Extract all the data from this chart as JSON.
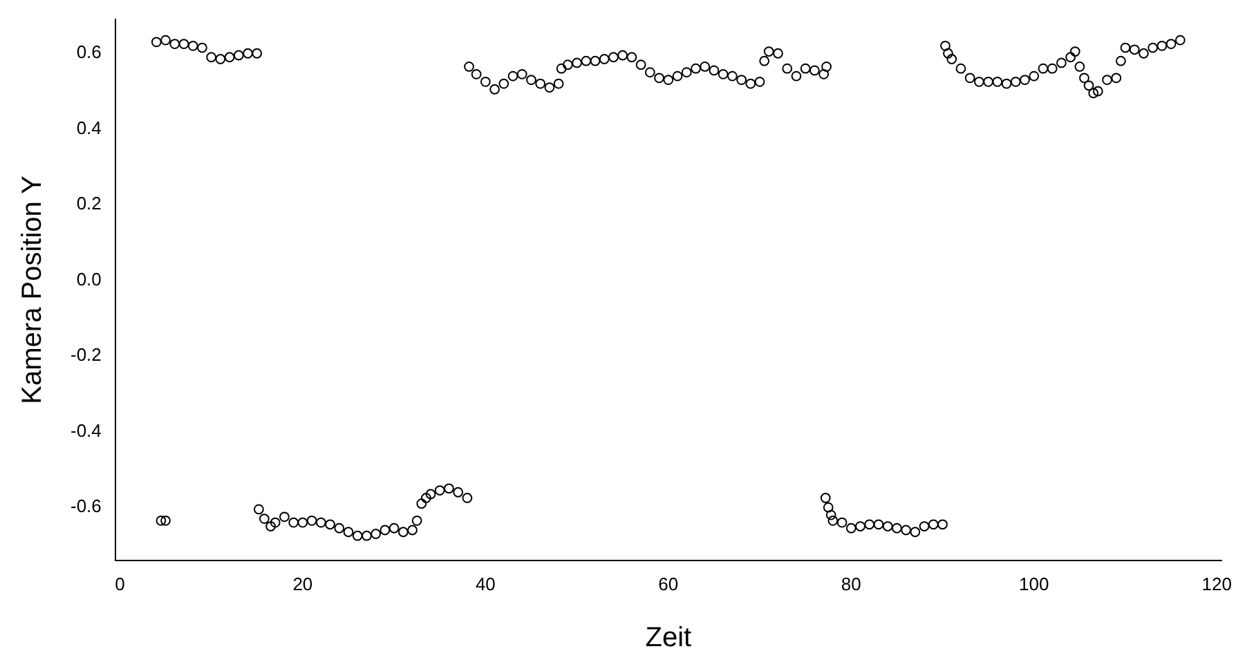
{
  "chart_data": {
    "type": "scatter",
    "xlabel": "Zeit",
    "ylabel": "Kamera Position Y",
    "color": "#000000",
    "marker": "circle",
    "x": [
      4,
      5,
      6,
      7,
      8,
      9,
      10,
      11,
      12,
      13,
      14,
      15,
      4.5,
      5,
      15.2,
      15.8,
      16.5,
      17,
      18,
      19,
      20,
      21,
      22,
      23,
      24,
      25,
      26,
      27,
      28,
      29,
      30,
      31,
      32,
      32.5,
      33,
      33.5,
      34,
      35,
      36,
      37,
      38,
      38.2,
      39,
      40,
      41,
      42,
      43,
      44,
      45,
      46,
      47,
      48,
      48.3,
      49,
      50,
      51,
      52,
      53,
      54,
      55,
      56,
      57,
      58,
      59,
      60,
      61,
      62,
      63,
      64,
      65,
      66,
      67,
      68,
      69,
      70,
      70.5,
      71,
      72,
      73,
      74,
      75,
      76,
      77,
      77.3,
      77.2,
      77.5,
      77.8,
      78,
      79,
      80,
      81,
      82,
      83,
      84,
      85,
      86,
      87,
      88,
      89,
      90,
      90.3,
      90.6,
      91,
      92,
      93,
      94,
      95,
      96,
      97,
      98,
      99,
      100,
      101,
      102,
      103,
      104,
      104.5,
      105,
      105.5,
      106,
      106.5,
      107,
      108,
      109,
      109.5,
      110,
      111,
      112,
      113,
      114,
      115,
      116
    ],
    "values": [
      0.63,
      0.635,
      0.625,
      0.625,
      0.62,
      0.615,
      0.59,
      0.585,
      0.59,
      0.595,
      0.6,
      0.6,
      -0.635,
      -0.635,
      -0.605,
      -0.63,
      -0.65,
      -0.64,
      -0.625,
      -0.64,
      -0.64,
      -0.635,
      -0.64,
      -0.645,
      -0.655,
      -0.665,
      -0.675,
      -0.675,
      -0.67,
      -0.66,
      -0.655,
      -0.665,
      -0.66,
      -0.635,
      -0.59,
      -0.575,
      -0.565,
      -0.555,
      -0.55,
      -0.56,
      -0.575,
      0.565,
      0.545,
      0.525,
      0.505,
      0.52,
      0.54,
      0.545,
      0.53,
      0.52,
      0.51,
      0.52,
      0.56,
      0.57,
      0.575,
      0.58,
      0.58,
      0.585,
      0.59,
      0.595,
      0.59,
      0.57,
      0.55,
      0.535,
      0.53,
      0.54,
      0.55,
      0.56,
      0.565,
      0.555,
      0.545,
      0.54,
      0.53,
      0.52,
      0.525,
      0.58,
      0.605,
      0.6,
      0.56,
      0.54,
      0.56,
      0.555,
      0.545,
      0.565,
      -0.575,
      -0.6,
      -0.62,
      -0.635,
      -0.64,
      -0.655,
      -0.65,
      -0.645,
      -0.645,
      -0.65,
      -0.655,
      -0.66,
      -0.665,
      -0.65,
      -0.645,
      -0.645,
      0.62,
      0.6,
      0.585,
      0.56,
      0.535,
      0.525,
      0.525,
      0.525,
      0.52,
      0.525,
      0.53,
      0.54,
      0.56,
      0.56,
      0.575,
      0.59,
      0.605,
      0.565,
      0.535,
      0.515,
      0.495,
      0.5,
      0.53,
      0.535,
      0.58,
      0.615,
      0.61,
      0.6,
      0.615,
      0.62,
      0.625,
      0.635
    ],
    "xlim": [
      -0.5,
      120.5
    ],
    "ylim": [
      -0.74,
      0.69
    ],
    "xticks": [
      0,
      20,
      40,
      60,
      80,
      100,
      120
    ],
    "yticks": [
      -0.6,
      -0.4,
      -0.2,
      {
        "value": 0,
        "label": "0.0"
      },
      0.2,
      0.4,
      0.6
    ]
  }
}
